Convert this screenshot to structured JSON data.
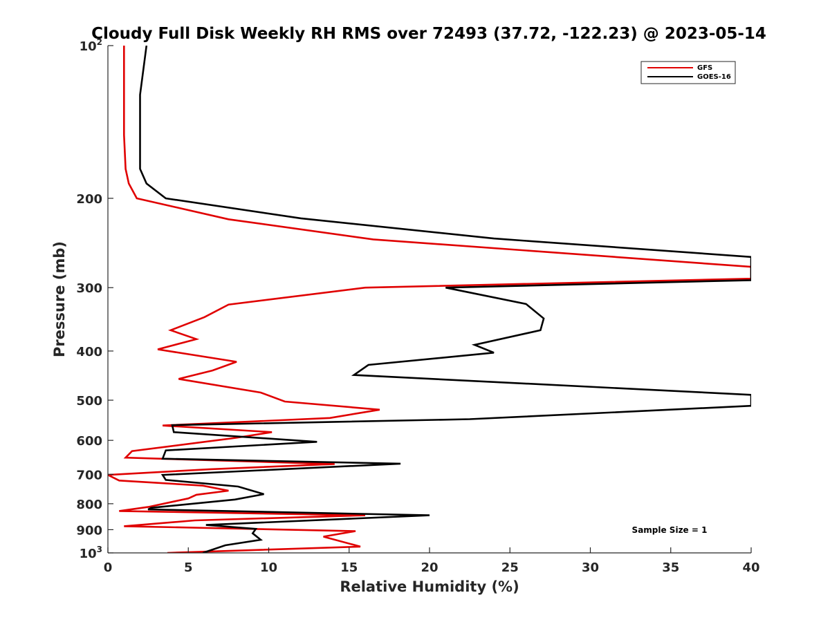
{
  "chart_data": {
    "type": "line",
    "title": "Cloudy Full Disk Weekly RH RMS over 72493 (37.72, -122.23) @ 2023-05-14",
    "xlabel": "Relative Humidity (%)",
    "ylabel": "Pressure (mb)",
    "xlim": [
      0,
      40
    ],
    "ylim": [
      100,
      1000
    ],
    "y_scale": "log",
    "y_reversed": true,
    "grid": false,
    "legend_position": "top-right",
    "x_ticks": [
      "0",
      "5",
      "10",
      "15",
      "20",
      "25",
      "30",
      "35",
      "40"
    ],
    "y_ticks": [
      {
        "value": 100,
        "base": "10",
        "exp": "2"
      },
      {
        "value": 200,
        "label": "200"
      },
      {
        "value": 300,
        "label": "300"
      },
      {
        "value": 400,
        "label": "400"
      },
      {
        "value": 500,
        "label": "500"
      },
      {
        "value": 600,
        "label": "600"
      },
      {
        "value": 700,
        "label": "700"
      },
      {
        "value": 800,
        "label": "800"
      },
      {
        "value": 900,
        "label": "900"
      },
      {
        "value": 1000,
        "base": "10",
        "exp": "3"
      }
    ],
    "series": [
      {
        "name": "GFS",
        "color": "#e00000",
        "points": [
          [
            1.0,
            100
          ],
          [
            1.0,
            125
          ],
          [
            1.0,
            150
          ],
          [
            1.1,
            175
          ],
          [
            1.3,
            187
          ],
          [
            1.8,
            200
          ],
          [
            7.5,
            220
          ],
          [
            16.5,
            241
          ],
          [
            40,
            273
          ],
          [
            40,
            288
          ],
          [
            16,
            300
          ],
          [
            7.5,
            324
          ],
          [
            6,
            343
          ],
          [
            3.9,
            364
          ],
          [
            5.5,
            379
          ],
          [
            3.1,
            397
          ],
          [
            8,
            420
          ],
          [
            6.5,
            437
          ],
          [
            4.4,
            454
          ],
          [
            9.5,
            483
          ],
          [
            11,
            503
          ],
          [
            16.9,
            522
          ],
          [
            13.8,
            542
          ],
          [
            3.4,
            561
          ],
          [
            10.2,
            578
          ],
          [
            8,
            593
          ],
          [
            1.5,
            630
          ],
          [
            1.1,
            649
          ],
          [
            14.1,
            668
          ],
          [
            6.4,
            684
          ],
          [
            0,
            702
          ],
          [
            0.7,
            720
          ],
          [
            5.9,
            737
          ],
          [
            7.5,
            754
          ],
          [
            5.5,
            768
          ],
          [
            5,
            781
          ],
          [
            2.5,
            812
          ],
          [
            0.7,
            827
          ],
          [
            16,
            843
          ],
          [
            5.4,
            863
          ],
          [
            1.0,
            886
          ],
          [
            15.4,
            906
          ],
          [
            13.4,
            929
          ],
          [
            15.7,
            972
          ],
          [
            3.7,
            1000
          ]
        ]
      },
      {
        "name": "GOES-16",
        "color": "#000000",
        "points": [
          [
            2.4,
            100
          ],
          [
            2.0,
            125
          ],
          [
            2.0,
            150
          ],
          [
            2.0,
            175
          ],
          [
            2.4,
            187
          ],
          [
            3.6,
            200
          ],
          [
            12.0,
            219
          ],
          [
            24.0,
            240
          ],
          [
            40,
            261
          ],
          [
            40,
            290
          ],
          [
            21.0,
            300
          ],
          [
            26.0,
            323
          ],
          [
            27.1,
            345
          ],
          [
            26.9,
            364
          ],
          [
            22.8,
            389
          ],
          [
            24.0,
            403
          ],
          [
            16.2,
            426
          ],
          [
            15.3,
            446
          ],
          [
            40,
            488
          ],
          [
            40,
            513
          ],
          [
            22.5,
            545
          ],
          [
            4.0,
            560
          ],
          [
            4.1,
            578
          ],
          [
            13.0,
            604
          ],
          [
            3.6,
            628
          ],
          [
            3.4,
            652
          ],
          [
            18.2,
            667
          ],
          [
            3.4,
            702
          ],
          [
            3.6,
            718
          ],
          [
            8.1,
            740
          ],
          [
            9.7,
            766
          ],
          [
            7.9,
            785
          ],
          [
            2.7,
            815
          ],
          [
            2.5,
            821
          ],
          [
            20.0,
            843
          ],
          [
            6.1,
            881
          ],
          [
            9.2,
            897
          ],
          [
            9.0,
            915
          ],
          [
            9.5,
            942
          ],
          [
            7.3,
            966
          ],
          [
            5.9,
            1000
          ]
        ]
      }
    ],
    "annotations": [
      "Sample Size = 1"
    ]
  }
}
